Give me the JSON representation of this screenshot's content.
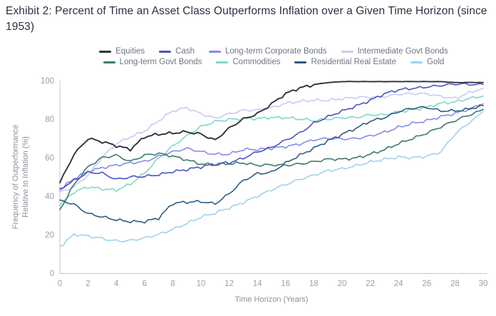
{
  "page": {
    "title": "Exhibit 2: Percent of Time an Asset Class Outperforms Inflation over a Given Time Horizon (since 1953)"
  },
  "chart_data": {
    "type": "line",
    "title": "Percent of Time an Asset Class Outperforms Inflation over a Given Time Horizon (since 1953)",
    "xlabel": "Time Horizon (Years)",
    "ylabel": "Frequency of Outperformance Relative to Inflation (%)",
    "ylabel_lines": [
      "Frequency of Outperformance",
      "Relative to Inflation (%)"
    ],
    "xlim": [
      0,
      30
    ],
    "ylim": [
      0,
      100
    ],
    "x_ticks": [
      0,
      2,
      4,
      6,
      8,
      10,
      12,
      14,
      16,
      18,
      20,
      22,
      24,
      26,
      28,
      30
    ],
    "y_ticks": [
      0,
      20,
      40,
      60,
      80,
      100
    ],
    "grid": false,
    "legend_position": "top",
    "x": [
      0,
      1,
      2,
      3,
      4,
      5,
      6,
      7,
      8,
      9,
      10,
      11,
      12,
      13,
      14,
      15,
      16,
      17,
      18,
      19,
      20,
      21,
      22,
      23,
      24,
      25,
      26,
      27,
      28,
      29,
      30
    ],
    "series": [
      {
        "name": "Equities",
        "color": "#2d323c",
        "values": [
          47,
          62,
          70,
          68,
          66,
          64.5,
          71,
          72,
          72.5,
          73.5,
          72.5,
          69,
          75,
          80,
          83,
          88,
          93,
          96,
          98,
          99,
          99.5,
          99.5,
          99.5,
          99.5,
          99.5,
          99.5,
          99.5,
          99.5,
          99,
          99,
          99
        ]
      },
      {
        "name": "Cash",
        "color": "#4a52c8",
        "values": [
          44,
          48,
          52,
          52,
          49,
          50,
          50,
          51,
          53,
          54,
          55,
          56.5,
          57.5,
          60,
          63,
          65,
          69,
          73,
          78,
          81,
          84,
          87,
          90,
          93,
          95,
          96,
          97,
          97.5,
          98,
          98,
          98
        ]
      },
      {
        "name": "Long-term Corporate Bonds",
        "color": "#868bea",
        "values": [
          43,
          49,
          53,
          55,
          56,
          57,
          58,
          61,
          63,
          64.5,
          63,
          62,
          62,
          64,
          64,
          65,
          66,
          67,
          69,
          70,
          70,
          70,
          71,
          73,
          76,
          78,
          79,
          81,
          83,
          85.5,
          88
        ]
      },
      {
        "name": "Intermediate Govt Bonds",
        "color": "#c7cbf5",
        "values": [
          42,
          45,
          51,
          60,
          67,
          71,
          74,
          79,
          84,
          86,
          83,
          80.5,
          82.5,
          84.5,
          85,
          86,
          88,
          89,
          90,
          90,
          90.5,
          91,
          91.5,
          92,
          93,
          93,
          93,
          92,
          91,
          93.5,
          96
        ]
      },
      {
        "name": "Long-term Govt Bonds",
        "color": "#3d7a6c",
        "values": [
          33,
          46,
          55,
          60,
          61.5,
          58,
          61,
          62,
          61,
          59,
          56.5,
          56,
          57,
          57.5,
          56,
          56,
          56,
          57,
          58,
          59,
          59,
          60,
          62,
          64,
          67,
          70,
          73,
          76,
          79,
          82,
          85
        ]
      },
      {
        "name": "Commodities",
        "color": "#7ed9c6",
        "values": [
          35,
          42,
          45,
          44,
          43,
          46,
          52,
          60,
          66,
          71,
          76,
          79,
          80,
          80,
          80,
          81,
          81,
          80,
          79,
          80,
          81,
          81,
          82,
          82,
          84,
          85,
          86,
          88,
          89,
          91,
          92
        ]
      },
      {
        "name": "Residential Real Estate",
        "color": "#2b5d82",
        "values": [
          38,
          36,
          31,
          29,
          27.5,
          27,
          27,
          28.5,
          36,
          37,
          37.5,
          36,
          41,
          48,
          52,
          52.5,
          57,
          61,
          65,
          69,
          72,
          75,
          79,
          81,
          84,
          85.5,
          86,
          84.5,
          84.5,
          85,
          87
        ]
      },
      {
        "name": "Gold",
        "color": "#a0d2ec",
        "values": [
          14,
          20,
          19,
          18,
          17,
          17,
          18,
          20,
          23,
          26,
          29,
          31,
          34,
          37,
          40,
          43,
          46,
          49,
          51,
          53,
          54,
          56,
          58,
          59,
          60,
          60,
          61,
          63,
          72,
          78,
          84
        ]
      }
    ]
  }
}
